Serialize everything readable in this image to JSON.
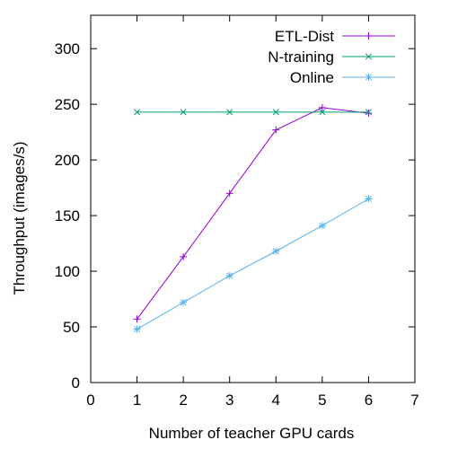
{
  "chart_data": {
    "type": "line",
    "xlabel": "Number of teacher GPU cards",
    "ylabel": "Throughput (images/s)",
    "xlim": [
      0,
      7
    ],
    "ylim": [
      0,
      330
    ],
    "xticks": [
      0,
      1,
      2,
      3,
      4,
      5,
      6,
      7
    ],
    "yticks": [
      0,
      50,
      100,
      150,
      200,
      250,
      300
    ],
    "grid": false,
    "legend_position": "top-right",
    "series": [
      {
        "name": "ETL-Dist",
        "color": "#9400d3",
        "marker": "plus",
        "x": [
          1,
          2,
          3,
          4,
          5,
          6
        ],
        "y": [
          57,
          113,
          170,
          227,
          247,
          242
        ]
      },
      {
        "name": "N-training",
        "color": "#009e73",
        "marker": "cross",
        "x": [
          1,
          2,
          3,
          4,
          5,
          6
        ],
        "y": [
          243,
          243,
          243,
          243,
          243,
          243
        ]
      },
      {
        "name": "Online",
        "color": "#56b4e9",
        "marker": "star",
        "x": [
          1,
          2,
          3,
          4,
          5,
          6
        ],
        "y": [
          48,
          72,
          96,
          118,
          141,
          165
        ]
      }
    ]
  }
}
